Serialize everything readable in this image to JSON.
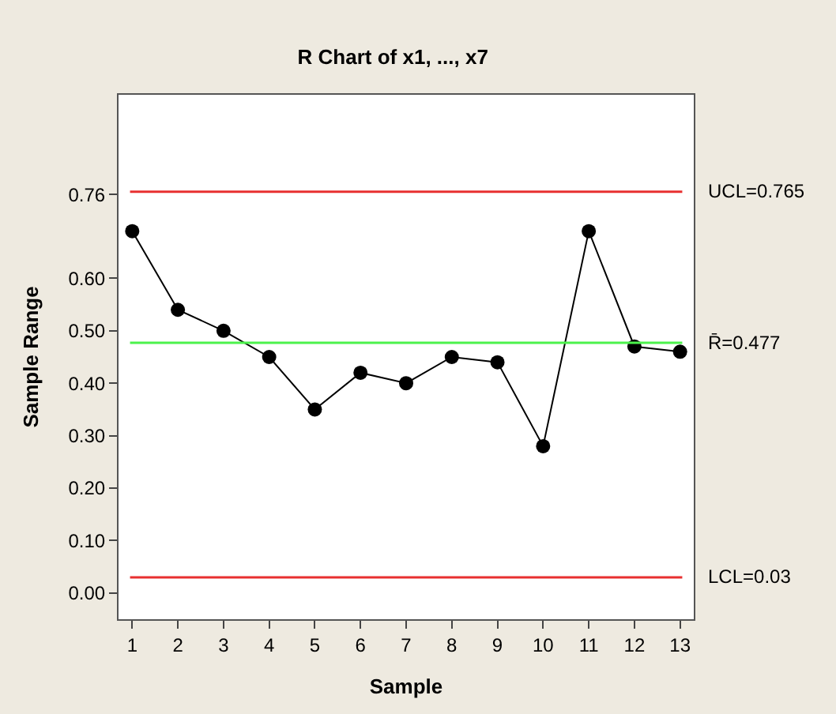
{
  "chart_data": {
    "type": "line",
    "title": "R Chart of x1, ..., x7",
    "xlabel": "Sample",
    "ylabel": "Sample Range",
    "x": [
      1,
      2,
      3,
      4,
      5,
      6,
      7,
      8,
      9,
      10,
      11,
      12,
      13
    ],
    "series": [
      {
        "color": "#000000",
        "values": [
          0.69,
          0.54,
          0.5,
          0.45,
          0.35,
          0.42,
          0.4,
          0.45,
          0.44,
          0.28,
          0.69,
          0.47,
          0.46
        ]
      }
    ],
    "xlim": [
      0.7,
      13.3
    ],
    "xticks": [
      1,
      2,
      3,
      4,
      5,
      6,
      7,
      8,
      9,
      10,
      11,
      12,
      13
    ],
    "ylim": [
      -0.05,
      0.95
    ],
    "yticks": [
      {
        "value": 0,
        "label": "0.00"
      },
      {
        "value": 0.1,
        "label": "0.10"
      },
      {
        "value": 0.2,
        "label": "0.20"
      },
      {
        "value": 0.3,
        "label": "0.30"
      },
      {
        "value": 0.4,
        "label": "0.40"
      },
      {
        "value": 0.5,
        "label": "0.50"
      },
      {
        "value": 0.6,
        "label": "0.60"
      },
      0.76
    ],
    "ref_lines": [
      {
        "axis": "y",
        "value": 0.765,
        "label": "UCL=0.765",
        "color": "#e83030"
      },
      {
        "axis": "y",
        "value": 0.477,
        "label": "R̄=0.477",
        "color": "#4cf24c"
      },
      {
        "axis": "y",
        "value": 0.03,
        "label": "LCL=0.03",
        "color": "#e83030"
      }
    ],
    "marker": "circle",
    "line_style": "solid",
    "legend": false
  }
}
